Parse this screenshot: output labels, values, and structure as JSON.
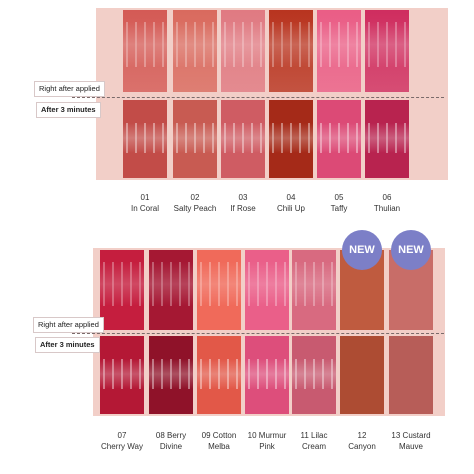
{
  "labels": {
    "right_after": "Right after applied",
    "after_3": "After 3 minutes"
  },
  "top_row": [
    {
      "num": "01",
      "name": "In Coral",
      "color_top": "#d45a55",
      "color_bot": "#c24c48"
    },
    {
      "num": "02",
      "name": "Salty Peach",
      "color_top": "#d96a5e",
      "color_bot": "#c85b52"
    },
    {
      "num": "03",
      "name": "If Rose",
      "color_top": "#e07a82",
      "color_bot": "#cf5c63"
    },
    {
      "num": "04",
      "name": "Chili Up",
      "color_top": "#b8341f",
      "color_bot": "#a52a18"
    },
    {
      "num": "05",
      "name": "Taffy",
      "color_top": "#ea5d86",
      "color_bot": "#dc4a76"
    },
    {
      "num": "06",
      "name": "Thulian",
      "color_top": "#cf2d5f",
      "color_bot": "#b8234f"
    }
  ],
  "bottom_row": [
    {
      "num": "07",
      "name1": "Cherry Way",
      "name2": "",
      "color_top": "#c51e3e",
      "color_bot": "#b41835",
      "new": false
    },
    {
      "num": "08",
      "name1": "Berry",
      "name2": "Divine",
      "color_top": "#a51833",
      "color_bot": "#8f1229",
      "new": false
    },
    {
      "num": "09",
      "name1": "Cotton",
      "name2": "Melba",
      "color_top": "#f06a5a",
      "color_bot": "#e25848",
      "new": false
    },
    {
      "num": "10",
      "name1": "Murmur",
      "name2": "Pink",
      "color_top": "#ea5f89",
      "color_bot": "#dd4e7b",
      "new": false
    },
    {
      "num": "11",
      "name1": "Lilac",
      "name2": "Cream",
      "color_top": "#d86a80",
      "color_bot": "#c85a70",
      "new": false
    },
    {
      "num": "12",
      "name1": "Canyon",
      "name2": "",
      "color_top": "#bf5b3f",
      "color_bot": "#ad4c33",
      "new": true
    },
    {
      "num": "13",
      "name1": "Custard",
      "name2": "Mauve",
      "color_top": "#c86d68",
      "color_bot": "#b75d58",
      "new": true
    }
  ],
  "badge_text": "NEW"
}
